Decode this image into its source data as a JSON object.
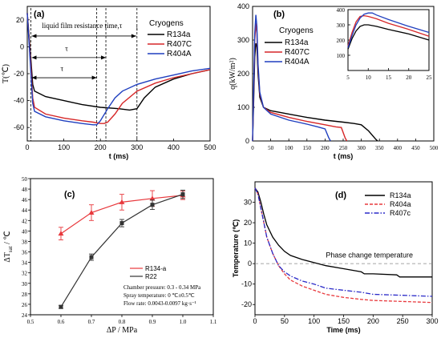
{
  "chart_data": [
    {
      "panel": "(a)",
      "type": "line",
      "xlabel": "t (ms)",
      "ylabel": "T(℃)",
      "xlim": [
        0,
        500
      ],
      "ylim": [
        -70,
        30
      ],
      "xticks": [
        0,
        100,
        200,
        300,
        400,
        500
      ],
      "yticks": [
        -60,
        -40,
        -20,
        0,
        20
      ],
      "legend_title": "Cryogens",
      "annotation": "liquid film resistance time,τ",
      "annotation_sub": "1",
      "tau_label": "τ",
      "tau_markers": [
        10,
        190,
        215,
        300
      ],
      "series": [
        {
          "name": "R134a",
          "color": "#000000",
          "x": [
            0,
            10,
            15,
            20,
            50,
            100,
            150,
            200,
            250,
            280,
            300,
            320,
            350,
            400,
            450,
            500
          ],
          "y": [
            25,
            -10,
            -28,
            -33,
            -37,
            -40,
            -43,
            -45,
            -46,
            -47,
            -46,
            -38,
            -30,
            -24,
            -20,
            -17
          ]
        },
        {
          "name": "R407C",
          "color": "#d62728",
          "x": [
            0,
            10,
            15,
            20,
            50,
            100,
            150,
            180,
            200,
            210,
            220,
            240,
            260,
            300,
            350,
            400,
            450,
            500
          ],
          "y": [
            25,
            -15,
            -38,
            -45,
            -50,
            -53,
            -55,
            -56,
            -57,
            -57,
            -56,
            -50,
            -42,
            -33,
            -27,
            -23,
            -20,
            -17
          ]
        },
        {
          "name": "R404A",
          "color": "#1f3fbf",
          "x": [
            0,
            10,
            15,
            20,
            50,
            100,
            150,
            180,
            190,
            200,
            220,
            240,
            260,
            300,
            350,
            400,
            450,
            500
          ],
          "y": [
            25,
            -20,
            -42,
            -48,
            -52,
            -55,
            -57,
            -58,
            -58,
            -55,
            -46,
            -38,
            -33,
            -28,
            -24,
            -21,
            -18,
            -16
          ]
        }
      ]
    },
    {
      "panel": "(b)",
      "type": "line",
      "xlabel": "t (ms)",
      "ylabel": "q(kW/m²)",
      "xlim": [
        0,
        500
      ],
      "ylim": [
        0,
        400
      ],
      "xticks": [
        0,
        50,
        100,
        150,
        200,
        250,
        300,
        350,
        400,
        450,
        500
      ],
      "yticks": [
        0,
        100,
        200,
        300,
        400
      ],
      "legend_title": "Cryogens",
      "series": [
        {
          "name": "R134a",
          "color": "#000000",
          "x": [
            0,
            3,
            6,
            9,
            12,
            15,
            20,
            30,
            50,
            100,
            150,
            200,
            250,
            280,
            300,
            320,
            340,
            345
          ],
          "y": [
            0,
            120,
            250,
            290,
            280,
            200,
            130,
            100,
            90,
            80,
            70,
            62,
            56,
            52,
            48,
            30,
            5,
            0
          ]
        },
        {
          "name": "R407C",
          "color": "#d62728",
          "x": [
            0,
            3,
            6,
            9,
            12,
            15,
            20,
            30,
            50,
            100,
            150,
            200,
            230,
            245,
            255,
            260
          ],
          "y": [
            0,
            150,
            300,
            350,
            320,
            220,
            140,
            100,
            85,
            70,
            58,
            48,
            42,
            40,
            10,
            0
          ]
        },
        {
          "name": "R404A",
          "color": "#1f3fbf",
          "x": [
            0,
            3,
            6,
            9,
            12,
            15,
            20,
            30,
            50,
            100,
            150,
            180,
            200,
            210,
            215
          ],
          "y": [
            0,
            160,
            320,
            375,
            340,
            230,
            145,
            100,
            80,
            62,
            50,
            42,
            36,
            10,
            0
          ]
        }
      ],
      "inset": {
        "xlim": [
          5,
          25
        ],
        "ylim": [
          0,
          400
        ],
        "xticks": [
          5,
          10,
          15,
          20,
          25
        ],
        "yticks": [
          100,
          200,
          300,
          400
        ],
        "series": [
          {
            "name": "R134a",
            "color": "#000000",
            "x": [
              5,
              6,
              7,
              8,
              9,
              10,
              12,
              15,
              20,
              25
            ],
            "y": [
              140,
              210,
              260,
              290,
              300,
              300,
              290,
              270,
              240,
              200
            ]
          },
          {
            "name": "R407C",
            "color": "#d62728",
            "x": [
              5,
              6,
              7,
              8,
              9,
              10,
              12,
              15,
              20,
              25
            ],
            "y": [
              160,
              250,
              320,
              355,
              360,
              355,
              340,
              310,
              270,
              225
            ]
          },
          {
            "name": "R404A",
            "color": "#1f3fbf",
            "x": [
              5,
              6,
              7,
              8,
              9,
              10,
              11,
              12,
              15,
              20,
              25
            ],
            "y": [
              150,
              230,
              300,
              345,
              370,
              378,
              378,
              365,
              335,
              290,
              250
            ]
          }
        ]
      }
    },
    {
      "panel": "(c)",
      "type": "line",
      "xlabel": "ΔP / MPa",
      "ylabel": "ΔT",
      "ylabel_sub": "sat",
      "ylabel_unit": "/ ℃",
      "xlim": [
        0.5,
        1.1
      ],
      "ylim": [
        24,
        50
      ],
      "xticks": [
        0.5,
        0.6,
        0.7,
        0.8,
        0.9,
        1.0,
        1.1
      ],
      "xtick_labels": [
        "0.5",
        "0.6",
        "0.7",
        "0.8",
        "0.9",
        "1.0",
        "1.1"
      ],
      "yticks": [
        24,
        26,
        28,
        30,
        32,
        34,
        36,
        38,
        40,
        42,
        44,
        46,
        48,
        50
      ],
      "conditions": [
        "Chamber pressure:  0.3 - 0.34 MPa",
        "Spray temperature:  0 ℃±0.5℃",
        "Flow rate:  0.0043-0.0097 kg·s⁻¹"
      ],
      "series": [
        {
          "name": "R134-a",
          "color": "#e8383c",
          "marker": "triangle",
          "x": [
            0.6,
            0.7,
            0.8,
            0.9,
            1.0
          ],
          "y": [
            39.5,
            43.5,
            45.5,
            46.2,
            46.8
          ],
          "err": [
            1.2,
            1.5,
            1.5,
            1.5,
            0.8
          ]
        },
        {
          "name": "R22",
          "color": "#333333",
          "marker": "square",
          "x": [
            0.6,
            0.7,
            0.8,
            0.9,
            1.0
          ],
          "y": [
            25.5,
            35.0,
            41.5,
            45.0,
            47.0
          ],
          "err": [
            0.3,
            0.6,
            0.7,
            0.9,
            0.8
          ]
        }
      ]
    },
    {
      "panel": "(d)",
      "type": "line",
      "xlabel": "Time (ms)",
      "ylabel": "Temperature (℃)",
      "xlim": [
        0,
        300
      ],
      "ylim": [
        -25,
        40
      ],
      "xticks": [
        0,
        50,
        100,
        150,
        200,
        250,
        300
      ],
      "yticks": [
        -20,
        -10,
        0,
        10,
        20,
        30
      ],
      "annotation": "Phase change temperature",
      "reference_y": 0,
      "series": [
        {
          "name": "R134a",
          "color": "#000000",
          "dash": "",
          "x": [
            0,
            5,
            10,
            15,
            20,
            30,
            40,
            50,
            60,
            80,
            100,
            120,
            150,
            180,
            185,
            200,
            240,
            245,
            250,
            280,
            300
          ],
          "y": [
            37,
            35,
            30,
            24,
            19,
            13,
            9,
            6,
            4,
            2,
            0.5,
            -1,
            -2.5,
            -4,
            -5,
            -5,
            -5.5,
            -6.5,
            -6.5,
            -6.5,
            -6.5
          ]
        },
        {
          "name": "R404a",
          "color": "#e8383c",
          "dash": "4,2",
          "x": [
            0,
            5,
            10,
            15,
            20,
            30,
            40,
            50,
            60,
            80,
            100,
            120,
            150,
            180,
            200,
            250,
            300
          ],
          "y": [
            37,
            34,
            27,
            20,
            13,
            5,
            -1,
            -5,
            -8,
            -11,
            -13,
            -15,
            -16.5,
            -17.5,
            -18,
            -18.5,
            -19
          ]
        },
        {
          "name": "R407c",
          "color": "#2a2ac8",
          "dash": "6,2,1.5,2",
          "x": [
            0,
            5,
            10,
            15,
            20,
            30,
            40,
            50,
            60,
            80,
            100,
            120,
            150,
            180,
            200,
            250,
            300
          ],
          "y": [
            37,
            34,
            27,
            20,
            13,
            5,
            -1,
            -4,
            -6,
            -8.5,
            -10,
            -12,
            -13,
            -14,
            -15,
            -15.5,
            -16
          ]
        }
      ]
    }
  ]
}
